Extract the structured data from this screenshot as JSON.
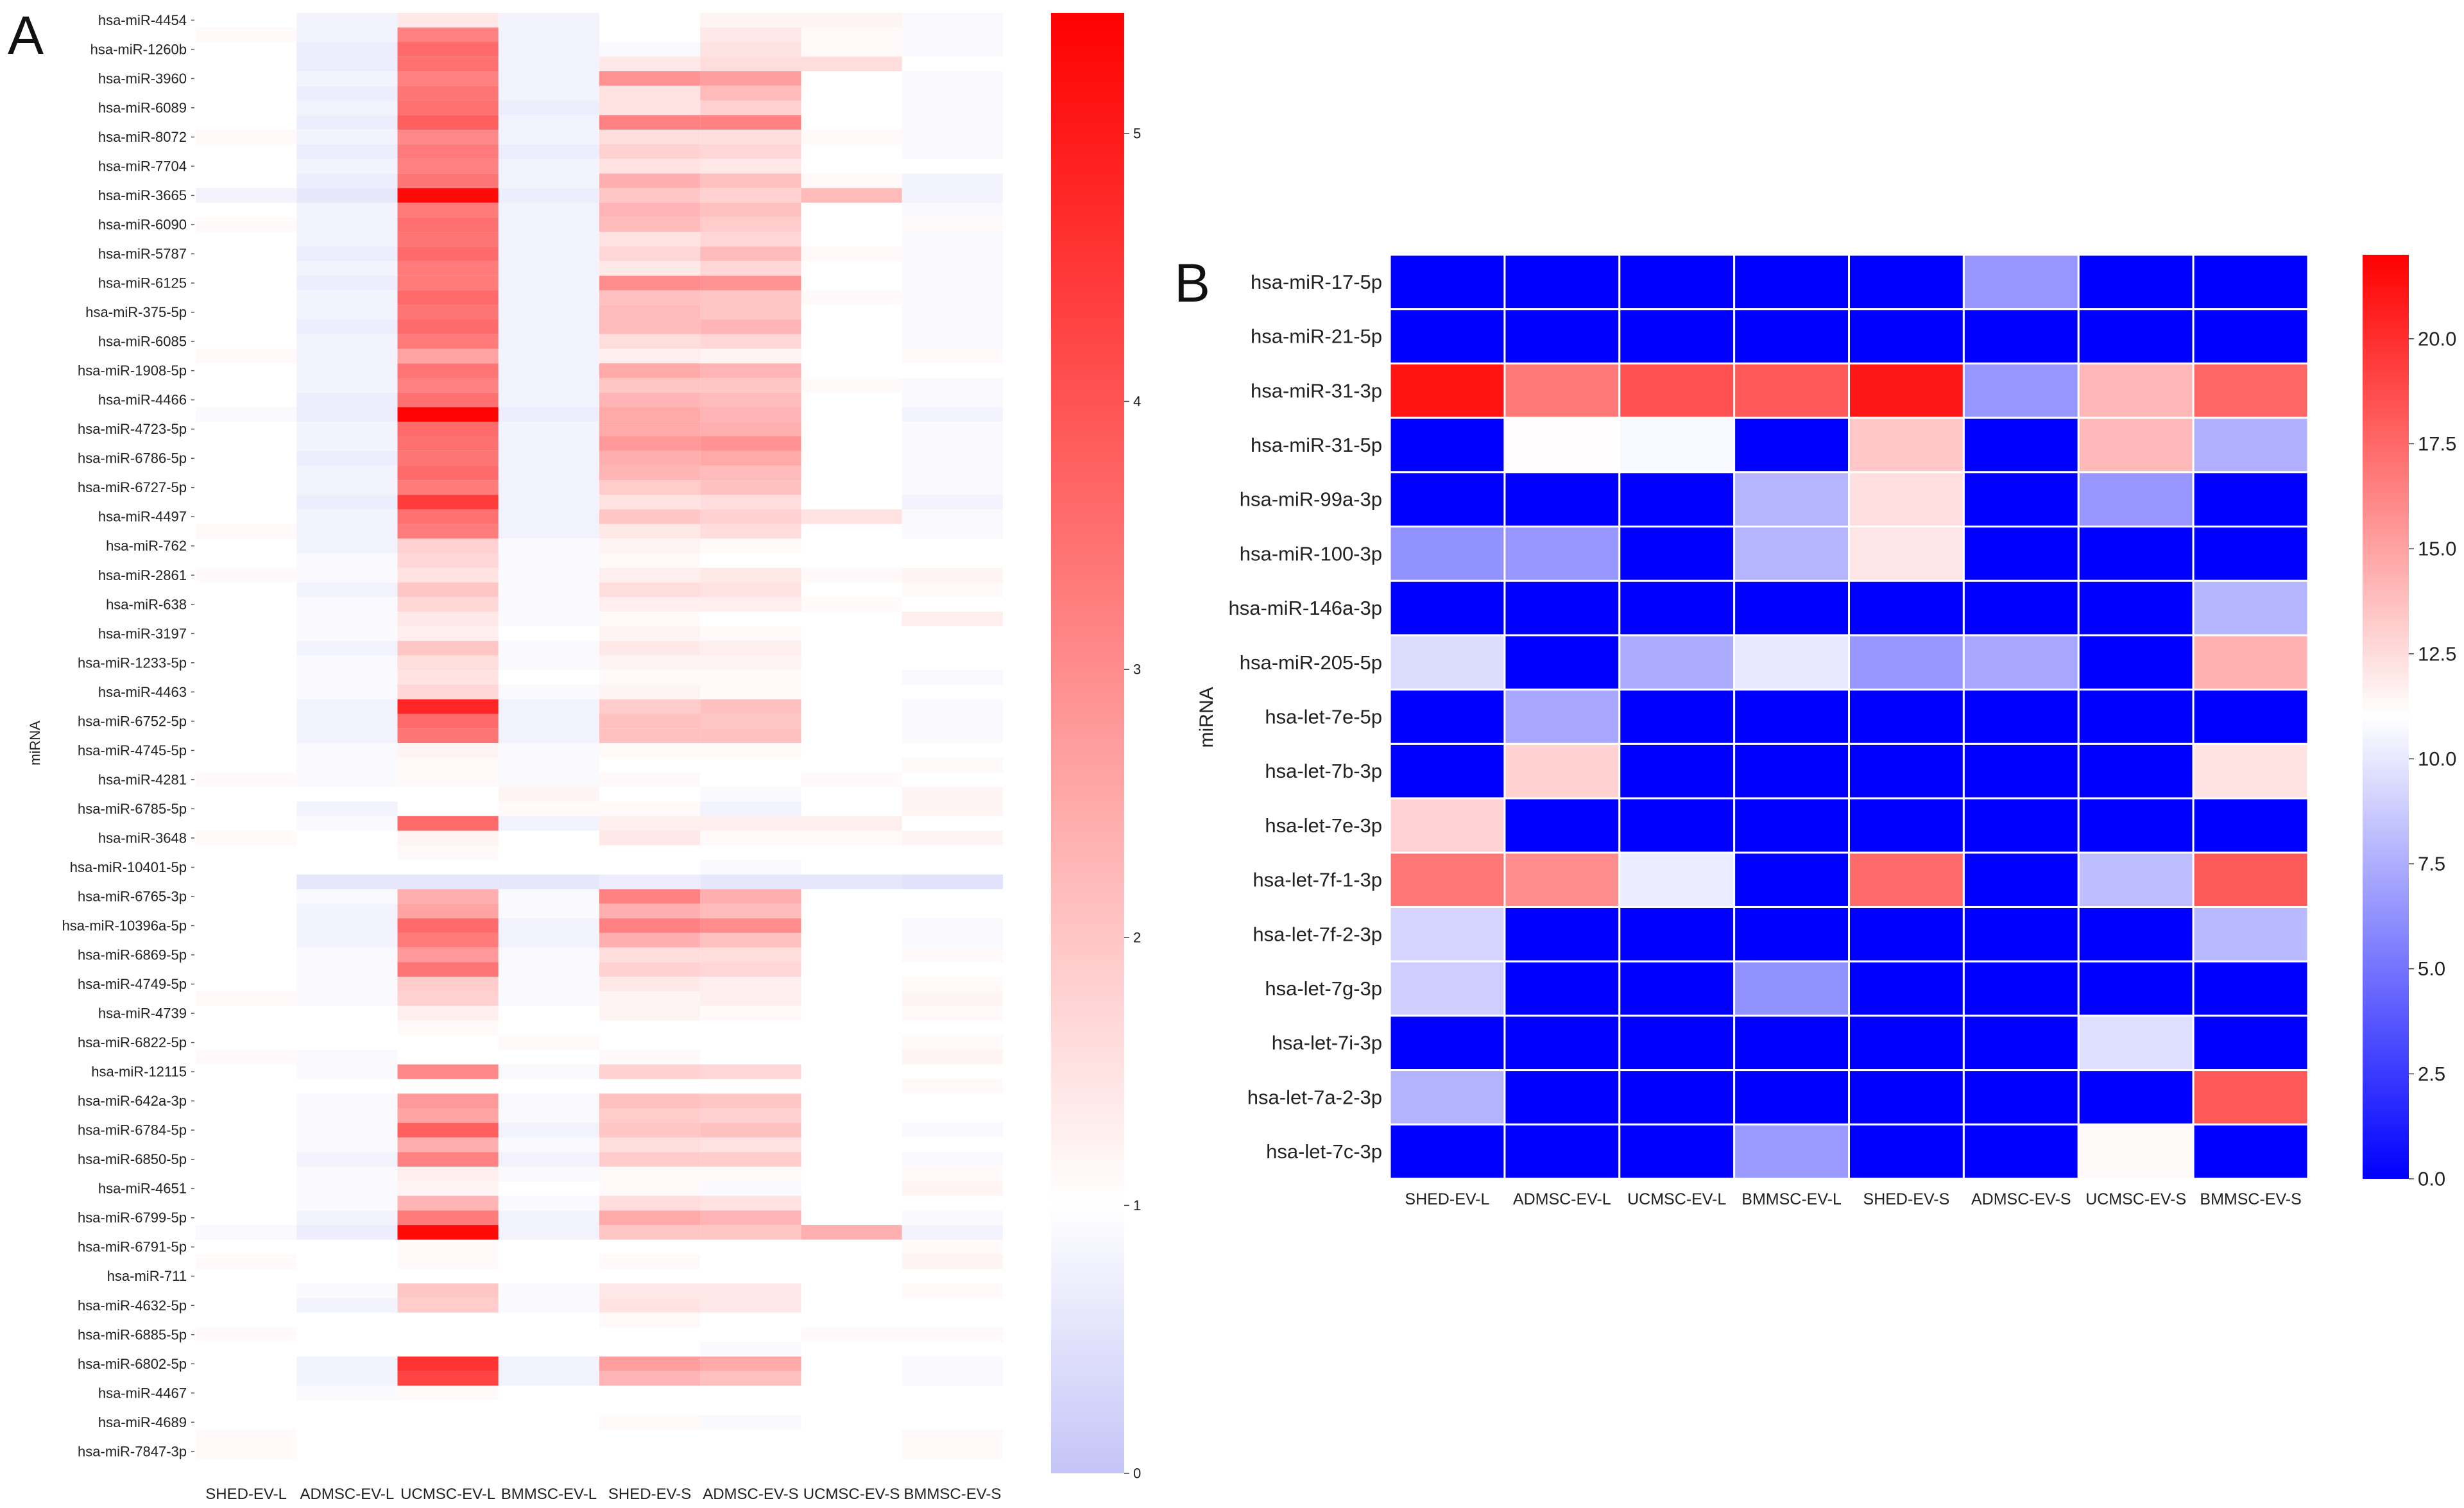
{
  "chart_data": [
    {
      "panel_label": "A",
      "type": "heatmap",
      "title": "",
      "xlabel": "",
      "ylabel": "miRNA",
      "columns": [
        "SHED-EV-L",
        "ADMSC-EV-L",
        "UCMSC-EV-L",
        "BMMSC-EV-L",
        "SHED-EV-S",
        "ADMSC-EV-S",
        "UCMSC-EV-S",
        "BMMSC-EV-S"
      ],
      "rows_total": 100,
      "row_labels": [
        "hsa-miR-4454",
        "hsa-miR-1260b",
        "hsa-miR-3960",
        "hsa-miR-6089",
        "hsa-miR-8072",
        "hsa-miR-7704",
        "hsa-miR-3665",
        "hsa-miR-6090",
        "hsa-miR-5787",
        "hsa-miR-6125",
        "hsa-miR-375-5p",
        "hsa-miR-6085",
        "hsa-miR-1908-5p",
        "hsa-miR-4466",
        "hsa-miR-4723-5p",
        "hsa-miR-6786-5p",
        "hsa-miR-6727-5p",
        "hsa-miR-4497",
        "hsa-miR-762",
        "hsa-miR-2861",
        "hsa-miR-638",
        "hsa-miR-3197",
        "hsa-miR-1233-5p",
        "hsa-miR-4463",
        "hsa-miR-6752-5p",
        "hsa-miR-4745-5p",
        "hsa-miR-4281",
        "hsa-miR-6785-5p",
        "hsa-miR-3648",
        "hsa-miR-10401-5p",
        "hsa-miR-6765-3p",
        "hsa-miR-10396a-5p",
        "hsa-miR-6869-5p",
        "hsa-miR-4749-5p",
        "hsa-miR-4739",
        "hsa-miR-6822-5p",
        "hsa-miR-12115",
        "hsa-miR-642a-3p",
        "hsa-miR-6784-5p",
        "hsa-miR-6850-5p",
        "hsa-miR-4651",
        "hsa-miR-6799-5p",
        "hsa-miR-6791-5p",
        "hsa-miR-711",
        "hsa-miR-4632-5p",
        "hsa-miR-6885-5p",
        "hsa-miR-6802-5p",
        "hsa-miR-4467",
        "hsa-miR-4689",
        "hsa-miR-7847-3p"
      ],
      "colorbar": {
        "min": 0,
        "max": 5.45,
        "center": 1,
        "ticks": [
          0,
          1,
          2,
          3,
          4,
          5
        ],
        "tick_labels": [
          "0",
          "1",
          "2",
          "3",
          "4",
          "5"
        ],
        "low_color": "#c4c4f8",
        "mid_color": "#ffffff",
        "high_color": "#ff0000"
      },
      "values": [
        [
          1.0,
          0.8,
          1.4,
          0.8,
          1.0,
          1.2,
          1.2,
          0.9
        ],
        [
          1.1,
          0.8,
          3.2,
          0.8,
          1.0,
          1.4,
          1.1,
          0.9
        ],
        [
          1.0,
          0.7,
          3.6,
          0.8,
          0.9,
          1.5,
          1.1,
          0.9
        ],
        [
          1.0,
          0.7,
          3.5,
          0.8,
          1.4,
          1.6,
          1.6,
          1.0
        ],
        [
          1.0,
          0.8,
          3.2,
          0.8,
          2.9,
          2.7,
          1.0,
          0.9
        ],
        [
          1.0,
          0.7,
          3.4,
          0.8,
          1.5,
          2.2,
          1.0,
          0.9
        ],
        [
          1.0,
          0.8,
          3.5,
          0.7,
          1.5,
          1.8,
          1.0,
          0.9
        ],
        [
          1.0,
          0.7,
          3.8,
          0.8,
          3.2,
          3.2,
          1.0,
          0.9
        ],
        [
          1.1,
          0.8,
          3.1,
          0.8,
          1.6,
          1.6,
          1.1,
          0.9
        ],
        [
          1.0,
          0.7,
          3.3,
          0.7,
          1.8,
          1.7,
          1.0,
          0.9
        ],
        [
          1.0,
          0.8,
          3.2,
          0.8,
          1.5,
          1.4,
          1.0,
          1.0
        ],
        [
          1.0,
          0.7,
          3.4,
          0.8,
          2.4,
          2.1,
          1.1,
          0.8
        ],
        [
          0.8,
          0.6,
          5.3,
          0.7,
          2.0,
          1.8,
          2.2,
          0.8
        ],
        [
          1.0,
          0.8,
          3.3,
          0.8,
          2.3,
          2.1,
          1.0,
          0.9
        ],
        [
          1.1,
          0.8,
          3.5,
          0.8,
          2.2,
          1.9,
          1.0,
          1.1
        ],
        [
          1.0,
          0.8,
          3.4,
          0.8,
          1.5,
          1.7,
          1.0,
          0.9
        ],
        [
          1.0,
          0.7,
          3.6,
          0.8,
          1.7,
          2.2,
          1.1,
          0.9
        ],
        [
          1.0,
          0.8,
          3.3,
          0.8,
          1.4,
          1.7,
          1.0,
          0.9
        ],
        [
          1.0,
          0.7,
          3.3,
          0.8,
          3.0,
          2.9,
          1.0,
          0.9
        ],
        [
          1.0,
          0.8,
          3.6,
          0.8,
          2.1,
          2.0,
          1.1,
          0.9
        ],
        [
          1.0,
          0.8,
          3.4,
          0.8,
          2.2,
          2.0,
          1.0,
          0.9
        ],
        [
          1.0,
          0.7,
          3.6,
          0.8,
          2.2,
          2.3,
          1.0,
          0.9
        ],
        [
          1.0,
          0.8,
          3.3,
          0.8,
          1.6,
          1.7,
          1.0,
          0.9
        ],
        [
          1.1,
          0.8,
          2.6,
          0.8,
          1.3,
          1.2,
          1.0,
          1.1
        ],
        [
          1.0,
          0.8,
          3.4,
          0.8,
          2.5,
          2.3,
          1.0,
          1.0
        ],
        [
          1.0,
          0.8,
          3.2,
          0.8,
          2.0,
          2.0,
          1.1,
          0.9
        ],
        [
          1.0,
          0.7,
          3.5,
          0.8,
          2.3,
          2.2,
          1.0,
          0.9
        ],
        [
          0.9,
          0.7,
          5.4,
          0.7,
          2.5,
          2.3,
          1.0,
          0.8
        ],
        [
          1.0,
          0.8,
          3.6,
          0.8,
          2.5,
          2.4,
          1.0,
          0.9
        ],
        [
          1.0,
          0.8,
          3.5,
          0.8,
          2.8,
          2.9,
          1.0,
          0.9
        ],
        [
          1.0,
          0.7,
          3.4,
          0.8,
          2.4,
          2.5,
          1.0,
          0.9
        ],
        [
          1.0,
          0.8,
          3.6,
          0.8,
          2.3,
          2.2,
          1.0,
          0.9
        ],
        [
          1.0,
          0.8,
          3.3,
          0.8,
          1.9,
          2.1,
          1.0,
          0.9
        ],
        [
          1.0,
          0.7,
          4.4,
          0.8,
          1.5,
          1.6,
          1.0,
          0.8
        ],
        [
          1.0,
          0.8,
          3.5,
          0.8,
          2.0,
          1.8,
          1.5,
          0.9
        ],
        [
          1.1,
          0.8,
          3.3,
          0.8,
          1.4,
          1.6,
          1.0,
          0.9
        ],
        [
          1.0,
          0.8,
          1.8,
          0.9,
          1.2,
          1.1,
          1.0,
          1.0
        ],
        [
          1.0,
          0.9,
          1.7,
          0.9,
          1.1,
          1.0,
          1.0,
          1.0
        ],
        [
          1.1,
          0.9,
          1.5,
          0.9,
          1.3,
          1.4,
          1.1,
          1.2
        ],
        [
          1.0,
          0.8,
          2.0,
          0.9,
          1.6,
          1.5,
          1.0,
          1.1
        ],
        [
          1.0,
          0.9,
          1.7,
          0.9,
          1.3,
          1.3,
          1.1,
          1.0
        ],
        [
          1.0,
          0.9,
          1.4,
          0.9,
          1.1,
          1.0,
          1.0,
          1.3
        ],
        [
          1.0,
          0.9,
          1.3,
          1.0,
          1.2,
          1.1,
          1.0,
          1.0
        ],
        [
          1.0,
          0.8,
          2.0,
          0.9,
          1.4,
          1.3,
          1.0,
          1.0
        ],
        [
          1.0,
          0.9,
          1.6,
          0.9,
          1.2,
          1.2,
          1.0,
          1.0
        ],
        [
          1.0,
          0.9,
          1.5,
          1.0,
          1.1,
          1.1,
          1.0,
          0.9
        ],
        [
          1.0,
          0.9,
          1.7,
          0.9,
          1.2,
          1.1,
          1.0,
          1.0
        ],
        [
          1.0,
          0.8,
          4.8,
          0.8,
          1.9,
          2.1,
          1.0,
          0.9
        ],
        [
          1.0,
          0.8,
          3.6,
          0.8,
          2.1,
          2.0,
          1.0,
          0.9
        ],
        [
          1.0,
          0.8,
          3.4,
          0.8,
          2.1,
          2.1,
          1.0,
          0.9
        ],
        [
          1.0,
          0.9,
          1.2,
          0.9,
          1.1,
          1.1,
          1.0,
          1.0
        ],
        [
          1.0,
          0.9,
          1.1,
          0.9,
          1.0,
          1.0,
          1.0,
          1.1
        ],
        [
          1.1,
          0.9,
          1.1,
          0.9,
          1.1,
          1.0,
          1.1,
          1.0
        ],
        [
          1.0,
          1.0,
          1.0,
          1.2,
          1.0,
          0.9,
          1.0,
          1.2
        ],
        [
          1.0,
          0.8,
          1.0,
          1.1,
          1.1,
          0.8,
          1.0,
          1.2
        ],
        [
          1.0,
          0.9,
          3.6,
          0.8,
          1.3,
          1.3,
          1.3,
          1.0
        ],
        [
          1.1,
          1.0,
          1.2,
          1.0,
          1.4,
          1.1,
          1.1,
          1.2
        ],
        [
          1.0,
          1.0,
          1.1,
          1.0,
          1.0,
          1.0,
          1.0,
          1.0
        ],
        [
          1.0,
          1.0,
          1.0,
          1.0,
          1.0,
          0.9,
          1.0,
          1.0
        ],
        [
          1.0,
          0.6,
          0.6,
          0.6,
          0.7,
          0.6,
          0.6,
          0.5
        ],
        [
          1.0,
          0.9,
          2.4,
          0.9,
          3.2,
          2.4,
          1.0,
          1.0
        ],
        [
          1.0,
          0.8,
          2.6,
          0.9,
          2.4,
          2.2,
          1.0,
          1.0
        ],
        [
          1.0,
          0.8,
          3.6,
          0.8,
          3.2,
          3.0,
          1.0,
          0.9
        ],
        [
          1.0,
          0.8,
          3.3,
          0.8,
          2.4,
          2.1,
          1.0,
          0.9
        ],
        [
          1.0,
          0.9,
          2.8,
          0.9,
          1.6,
          1.6,
          1.0,
          1.1
        ],
        [
          1.0,
          0.9,
          3.4,
          0.9,
          1.8,
          1.7,
          1.0,
          1.0
        ],
        [
          1.0,
          0.9,
          1.9,
          0.9,
          1.4,
          1.3,
          1.0,
          1.1
        ],
        [
          1.1,
          0.9,
          1.8,
          0.9,
          1.2,
          1.3,
          1.0,
          1.2
        ],
        [
          1.0,
          1.0,
          1.3,
          1.0,
          1.2,
          1.1,
          1.0,
          1.1
        ],
        [
          1.0,
          1.0,
          1.1,
          1.0,
          1.0,
          1.0,
          1.0,
          1.0
        ],
        [
          1.0,
          1.0,
          1.0,
          1.1,
          1.0,
          1.0,
          1.0,
          1.1
        ],
        [
          1.1,
          0.9,
          1.0,
          1.0,
          1.1,
          1.0,
          1.0,
          1.2
        ],
        [
          1.0,
          0.9,
          3.1,
          0.9,
          1.8,
          1.7,
          1.0,
          1.0
        ],
        [
          1.0,
          1.0,
          1.0,
          1.0,
          1.0,
          1.0,
          1.0,
          1.1
        ],
        [
          1.0,
          0.9,
          2.8,
          0.9,
          2.1,
          2.0,
          1.0,
          1.0
        ],
        [
          1.0,
          0.9,
          2.6,
          0.9,
          1.9,
          1.8,
          1.0,
          1.0
        ],
        [
          1.0,
          0.9,
          3.8,
          0.8,
          2.0,
          2.1,
          1.0,
          0.9
        ],
        [
          1.0,
          0.9,
          2.4,
          0.9,
          1.6,
          1.5,
          1.0,
          1.0
        ],
        [
          1.0,
          0.8,
          3.2,
          0.8,
          1.9,
          1.9,
          1.0,
          0.9
        ],
        [
          1.0,
          0.9,
          1.3,
          0.9,
          1.1,
          1.1,
          1.0,
          1.1
        ],
        [
          1.0,
          0.9,
          1.2,
          1.0,
          1.1,
          0.9,
          1.0,
          1.2
        ],
        [
          1.0,
          0.9,
          2.3,
          0.9,
          1.6,
          1.5,
          1.0,
          1.0
        ],
        [
          1.0,
          0.8,
          3.3,
          0.8,
          2.5,
          2.3,
          1.0,
          0.9
        ],
        [
          0.9,
          0.7,
          5.3,
          0.8,
          2.0,
          2.0,
          2.4,
          0.8
        ],
        [
          1.0,
          1.0,
          1.1,
          1.0,
          1.0,
          1.0,
          1.0,
          1.1
        ],
        [
          1.1,
          1.0,
          1.1,
          1.0,
          1.1,
          1.0,
          1.0,
          1.2
        ],
        [
          1.0,
          1.0,
          1.0,
          1.0,
          1.0,
          1.0,
          1.0,
          1.0
        ],
        [
          1.0,
          0.9,
          2.0,
          0.9,
          1.4,
          1.4,
          1.0,
          1.1
        ],
        [
          1.0,
          0.8,
          1.9,
          0.9,
          1.5,
          1.4,
          1.0,
          1.0
        ],
        [
          1.0,
          1.0,
          1.0,
          1.0,
          1.1,
          1.0,
          1.0,
          1.0
        ],
        [
          1.1,
          1.0,
          1.0,
          1.0,
          1.0,
          1.0,
          1.1,
          1.1
        ],
        [
          1.0,
          1.0,
          1.0,
          1.0,
          1.0,
          0.9,
          1.0,
          1.0
        ],
        [
          1.0,
          0.8,
          4.6,
          0.8,
          2.7,
          2.5,
          1.0,
          0.9
        ],
        [
          1.0,
          0.8,
          4.3,
          0.8,
          2.3,
          2.1,
          1.0,
          0.9
        ],
        [
          1.0,
          0.9,
          1.1,
          1.0,
          1.0,
          1.0,
          1.0,
          1.0
        ],
        [
          1.0,
          1.0,
          1.0,
          1.0,
          1.0,
          1.0,
          1.0,
          1.0
        ],
        [
          1.0,
          1.0,
          1.0,
          1.0,
          1.1,
          0.9,
          1.0,
          1.0
        ],
        [
          1.1,
          1.0,
          1.0,
          1.0,
          1.0,
          1.0,
          1.0,
          1.1
        ],
        [
          1.1,
          1.0,
          1.0,
          1.0,
          1.0,
          1.0,
          1.0,
          1.1
        ],
        [
          1.0,
          1.0,
          1.0,
          1.0,
          1.0,
          1.0,
          1.0,
          1.0
        ]
      ]
    },
    {
      "panel_label": "B",
      "type": "heatmap",
      "title": "",
      "xlabel": "",
      "ylabel": "miRNA",
      "columns": [
        "SHED-EV-L",
        "ADMSC-EV-L",
        "UCMSC-EV-L",
        "BMMSC-EV-L",
        "SHED-EV-S",
        "ADMSC-EV-S",
        "UCMSC-EV-S",
        "BMMSC-EV-S"
      ],
      "row_labels": [
        "hsa-miR-17-5p",
        "hsa-miR-21-5p",
        "hsa-miR-31-3p",
        "hsa-miR-31-5p",
        "hsa-miR-99a-3p",
        "hsa-miR-100-3p",
        "hsa-miR-146a-3p",
        "hsa-miR-205-5p",
        "hsa-let-7e-5p",
        "hsa-let-7b-3p",
        "hsa-let-7e-3p",
        "hsa-let-7f-1-3p",
        "hsa-let-7f-2-3p",
        "hsa-let-7g-3p",
        "hsa-let-7i-3p",
        "hsa-let-7a-2-3p",
        "hsa-let-7c-3p"
      ],
      "colorbar": {
        "min": 0,
        "max": 22,
        "center": 11,
        "ticks": [
          0,
          2.5,
          5,
          7.5,
          10,
          12.5,
          15,
          17.5,
          20
        ],
        "tick_labels": [
          "0.0",
          "2.5",
          "5.0",
          "7.5",
          "10.0",
          "12.5",
          "15.0",
          "17.5",
          "20.0"
        ],
        "low_color": "#0000ff",
        "mid_color": "#ffffff",
        "high_color": "#ff0000"
      },
      "values": [
        [
          0,
          0,
          0,
          0,
          0,
          6.5,
          0,
          0
        ],
        [
          0,
          0,
          0,
          0,
          0,
          0,
          0,
          0
        ],
        [
          21.2,
          16.8,
          18.5,
          18.2,
          21.0,
          6.5,
          14.1,
          17.6
        ],
        [
          0,
          11.1,
          10.7,
          0,
          13.4,
          0,
          14.0,
          7.6
        ],
        [
          0,
          0,
          0,
          7.8,
          12.4,
          0,
          6.5,
          0
        ],
        [
          6.3,
          6.5,
          0,
          7.8,
          12.1,
          0,
          0,
          0
        ],
        [
          0,
          0,
          0,
          0,
          0,
          0,
          0,
          7.8
        ],
        [
          9.5,
          0,
          7.4,
          10.0,
          6.5,
          7.2,
          0,
          14.4
        ],
        [
          0,
          7.2,
          0,
          0,
          0,
          0,
          0,
          0
        ],
        [
          0,
          13.0,
          0,
          0,
          0,
          0,
          0,
          12.2
        ],
        [
          12.9,
          0,
          0,
          0,
          0,
          0,
          0,
          0
        ],
        [
          16.9,
          15.9,
          10.2,
          0,
          17.4,
          0,
          8.2,
          18.1
        ],
        [
          9.2,
          0,
          0,
          0,
          0,
          0,
          0,
          8.0
        ],
        [
          8.9,
          0,
          0,
          6.3,
          0,
          0,
          0,
          0
        ],
        [
          0,
          0,
          0,
          0,
          0,
          0,
          9.6,
          0
        ],
        [
          7.7,
          0,
          0,
          0,
          0,
          0,
          0,
          18.2
        ],
        [
          0,
          0,
          0,
          6.6,
          0,
          0,
          11.2,
          0
        ]
      ]
    }
  ]
}
